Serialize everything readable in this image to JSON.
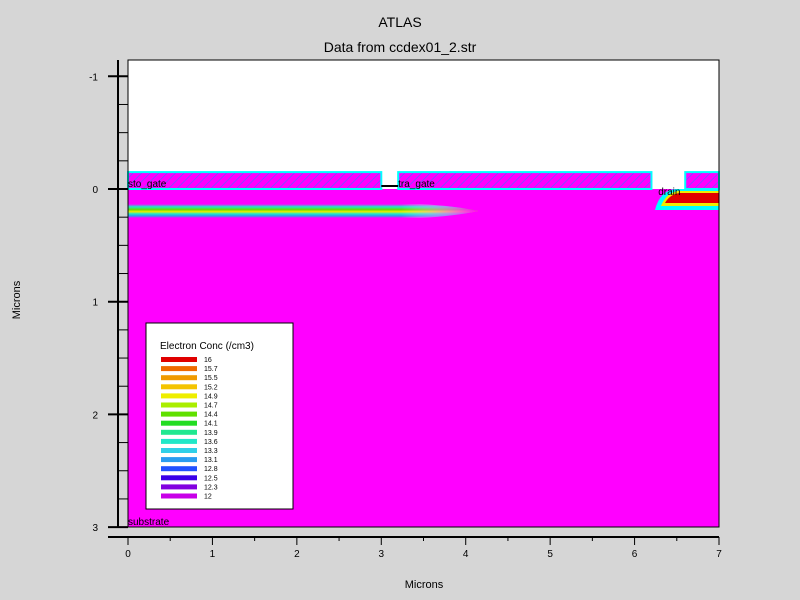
{
  "app": {
    "title": "ATLAS",
    "subtitle": "Data from ccdex01_2.str"
  },
  "chart_data": {
    "type": "heatmap",
    "title": "ATLAS",
    "subtitle": "Data from ccdex01_2.str",
    "xlabel": "Microns",
    "ylabel": "Microns",
    "xlim": [
      0,
      7
    ],
    "ylim": [
      3,
      -1.15
    ],
    "x_ticks": [
      0,
      1,
      2,
      3,
      4,
      5,
      6,
      7
    ],
    "y_ticks": [
      -1,
      0,
      1,
      2,
      3
    ],
    "electrode_labels": [
      {
        "name": "sto_gate",
        "x": 0.0,
        "y": 0.0
      },
      {
        "name": "tra_gate",
        "x": 3.2,
        "y": 0.0
      },
      {
        "name": "drain",
        "x": 6.28,
        "y": 0.07
      },
      {
        "name": "substrate",
        "x": 0.0,
        "y": 3.0
      }
    ],
    "regions": {
      "oxide_top": -0.15,
      "oxide_segments": [
        [
          0.0,
          3.0
        ],
        [
          3.2,
          6.2
        ],
        [
          6.6,
          7.0
        ]
      ],
      "gate_segments": [
        [
          0.0,
          3.0
        ],
        [
          3.2,
          6.2
        ],
        [
          6.6,
          7.0
        ]
      ]
    },
    "legend": {
      "title": "Electron Conc (/cm3)",
      "placement": "bottom-left",
      "levels": [
        "16",
        "15.7",
        "15.5",
        "15.2",
        "14.9",
        "14.7",
        "14.4",
        "14.1",
        "13.9",
        "13.6",
        "13.3",
        "13.1",
        "12.8",
        "12.5",
        "12.3",
        "12"
      ],
      "colors": [
        "#e00000",
        "#ee6a00",
        "#f09a00",
        "#f4c400",
        "#eeee00",
        "#aaee00",
        "#60e000",
        "#22dd22",
        "#20e890",
        "#20e8c8",
        "#30d0e8",
        "#2a9cf0",
        "#2050ff",
        "#3a00e8",
        "#8200e0",
        "#c800e8"
      ]
    },
    "colors": {
      "background": "#ff00ff",
      "outline": "#00ffff",
      "hatch": "#9040ff",
      "page": "#d6d6d6"
    }
  }
}
